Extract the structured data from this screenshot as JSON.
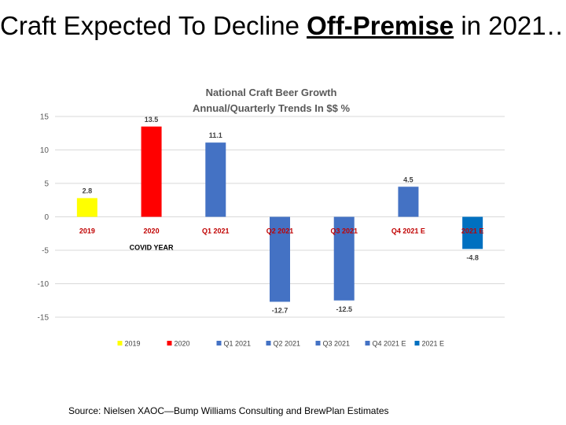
{
  "slide": {
    "title_pre": "Craft Expected To Decline ",
    "title_em": "Off-Premise",
    "title_post": " in 2021…",
    "source": "Source:  Nielsen XAOC—Bump Williams Consulting and BrewPlan Estimates"
  },
  "chart_data": {
    "type": "bar",
    "title": "National Craft Beer Growth",
    "subtitle": "Annual/Quarterly Trends In $$ %",
    "categories": [
      "2019",
      "2020",
      "Q1 2021",
      "Q2 2021",
      "Q3 2021",
      "Q4 2021 E",
      "2021 E"
    ],
    "values": [
      2.8,
      13.5,
      11.1,
      -12.7,
      -12.5,
      4.5,
      -4.8
    ],
    "data_labels": [
      "2.8",
      "13.5",
      "11.1",
      "-12.7",
      "-12.5",
      "4.5",
      "-4.8"
    ],
    "colors": [
      "#ffff00",
      "#ff0000",
      "#4472c4",
      "#4472c4",
      "#4472c4",
      "#4472c4",
      "#0070c0"
    ],
    "legend": [
      "2019",
      "2020",
      "Q1 2021",
      "Q2 2021",
      "Q3 2021",
      "Q4 2021 E",
      "2021 E"
    ],
    "annotation": "COVID YEAR",
    "category_label_color": "#c00000",
    "yticks": [
      15,
      10,
      5,
      0,
      -5,
      -10,
      -15
    ],
    "ylim": [
      -15,
      15
    ],
    "grid": true,
    "legend_position": "bottom"
  }
}
